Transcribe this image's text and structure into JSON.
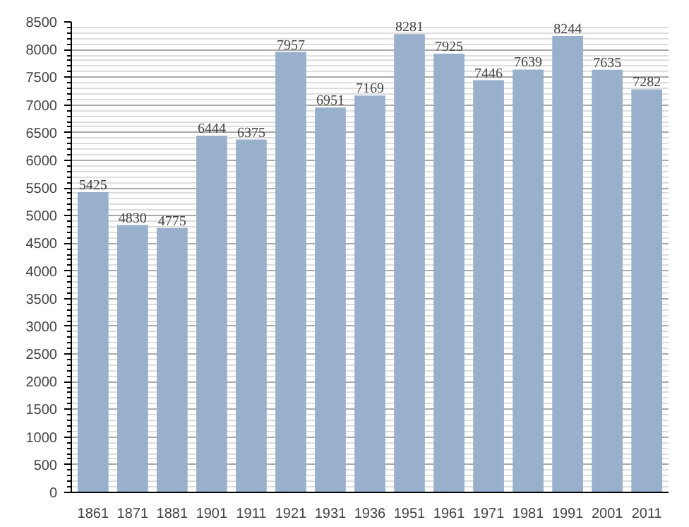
{
  "chart_data": {
    "type": "bar",
    "categories": [
      "1861",
      "1871",
      "1881",
      "1901",
      "1911",
      "1921",
      "1931",
      "1936",
      "1951",
      "1961",
      "1971",
      "1981",
      "1991",
      "2001",
      "2011"
    ],
    "values": [
      5425,
      4830,
      4775,
      6444,
      6375,
      7957,
      6951,
      7169,
      8281,
      7925,
      7446,
      7639,
      8244,
      7635,
      7282
    ],
    "color": "#98b0cc",
    "ylim": [
      0,
      8500
    ],
    "yticks": [
      0,
      500,
      1000,
      1500,
      2000,
      2500,
      3000,
      3500,
      4000,
      4500,
      5000,
      5500,
      6000,
      6500,
      7000,
      7500,
      8000,
      8500
    ],
    "grid": "y",
    "data_labels": true
  }
}
